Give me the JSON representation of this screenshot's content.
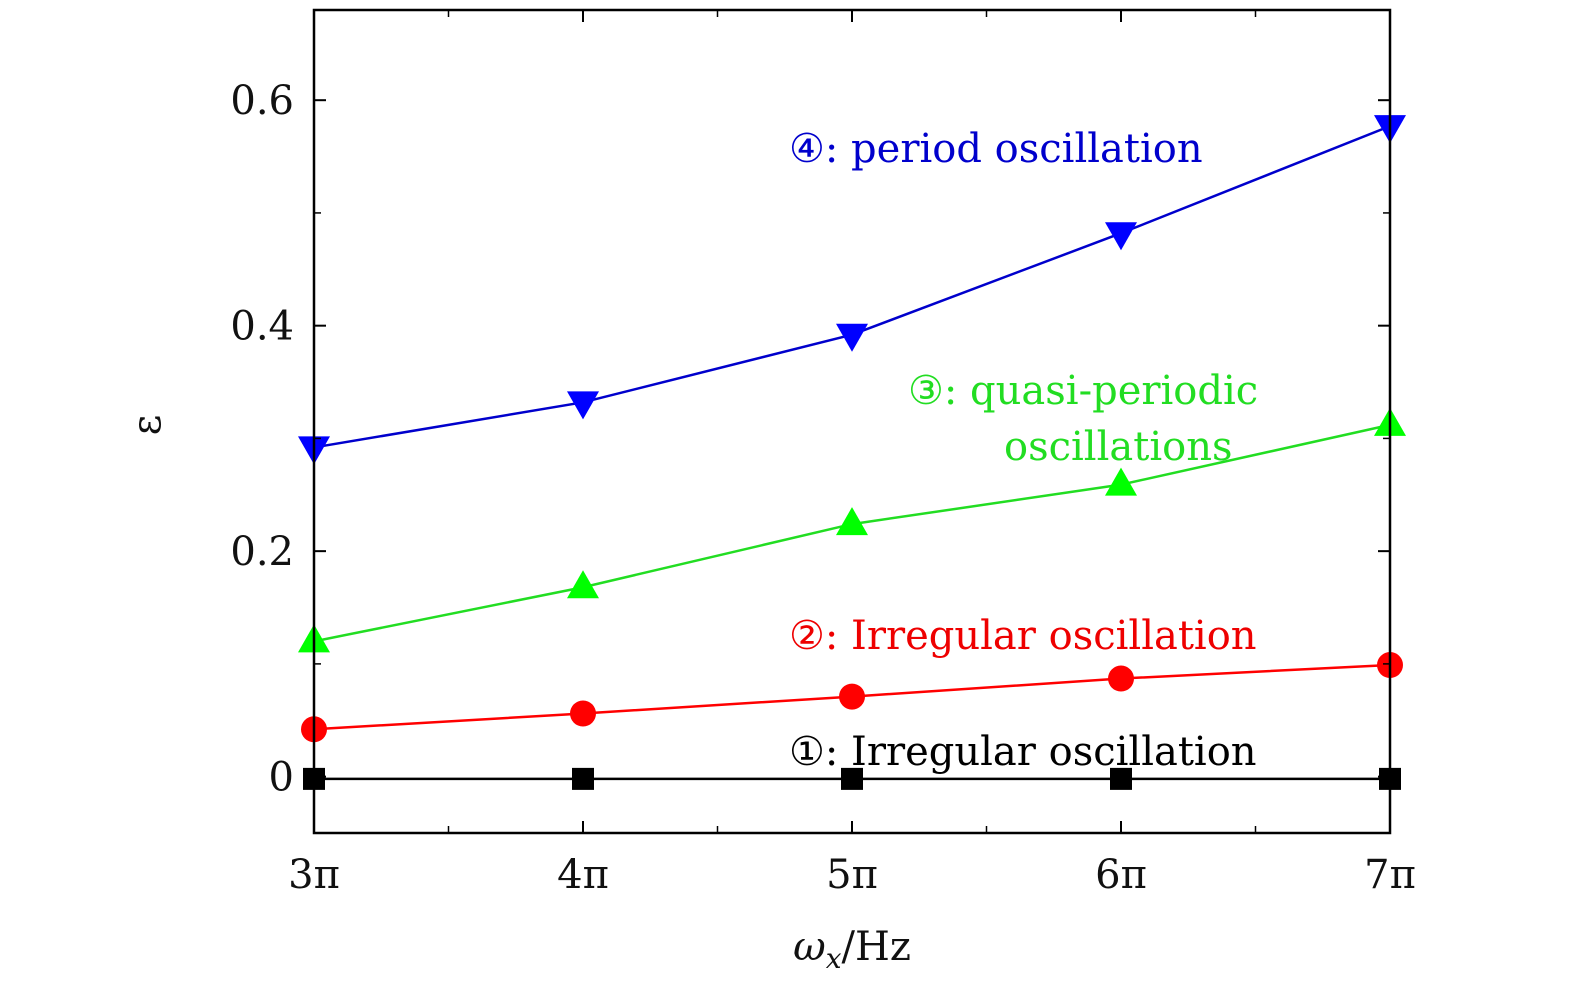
{
  "chart_data": {
    "type": "line",
    "title": "",
    "xlabel": "ωx/Hz",
    "xlabel_main": "ω",
    "xlabel_sub": "x",
    "xlabel_unit": "/Hz",
    "ylabel": "ε",
    "x": [
      3,
      4,
      5,
      6,
      7
    ],
    "x_tick_labels": [
      "3π",
      "4π",
      "5π",
      "6π",
      "7π"
    ],
    "xlim": [
      3,
      7
    ],
    "ylim": [
      -0.05,
      0.68
    ],
    "y_ticks": [
      0,
      0.2,
      0.4,
      0.6
    ],
    "y_tick_labels": [
      "0",
      "0.2",
      "0.4",
      "0.6"
    ],
    "grid": false,
    "legend": "none",
    "series": [
      {
        "marker": "square",
        "color": "#000000",
        "line_color": "#000000",
        "values": [
          -0.002,
          -0.002,
          -0.002,
          -0.002,
          -0.002
        ]
      },
      {
        "marker": "circle",
        "color": "#ff0000",
        "line_color": "#ff0000",
        "values": [
          0.042,
          0.056,
          0.071,
          0.087,
          0.099
        ]
      },
      {
        "marker": "triangle-up",
        "color": "#00ff00",
        "line_color": "#22dd22",
        "values": [
          0.12,
          0.168,
          0.224,
          0.259,
          0.312
        ]
      },
      {
        "marker": "triangle-down",
        "color": "#0000ff",
        "line_color": "#0000cc",
        "values": [
          0.292,
          0.332,
          0.392,
          0.482,
          0.577
        ]
      }
    ],
    "annotations": [
      {
        "lines": [
          "①: Irregular oscillation"
        ],
        "color": "#000000"
      },
      {
        "lines": [
          "②: Irregular oscillation"
        ],
        "color": "#ee0000"
      },
      {
        "lines": [
          "③: quasi-periodic",
          "oscillations"
        ],
        "color": "#22dd22"
      },
      {
        "lines": [
          "④: period oscillation"
        ],
        "color": "#0000cc"
      }
    ]
  }
}
